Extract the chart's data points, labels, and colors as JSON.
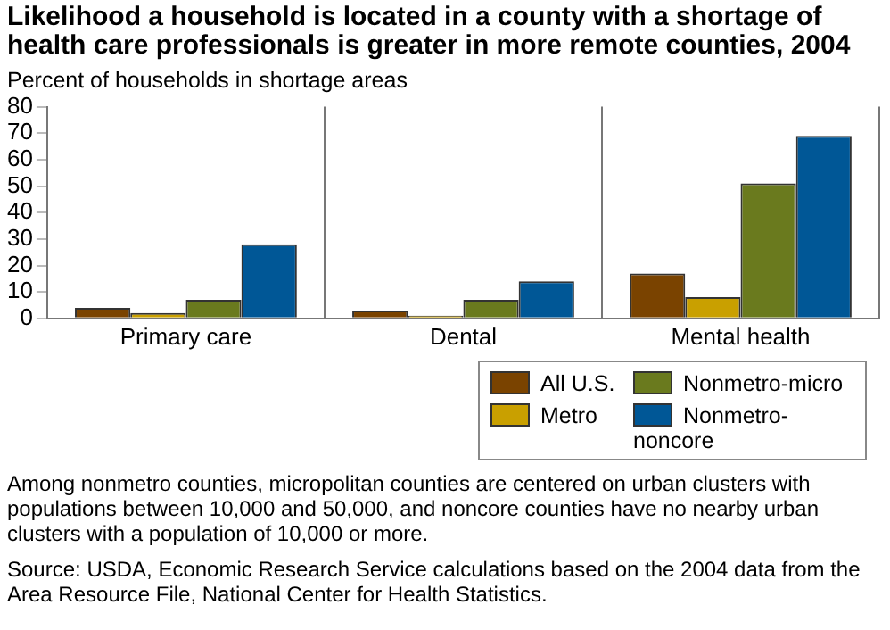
{
  "chart_data": {
    "type": "bar",
    "title": "Likelihood a household is located in a county with a shortage of health care professionals is greater in more remote counties, 2004",
    "ylabel": "Percent of households in shortage areas",
    "categories": [
      "Primary care",
      "Dental",
      "Mental health"
    ],
    "series": [
      {
        "name": "All U.S.",
        "color": "#7a4300",
        "values": [
          4,
          3,
          17
        ]
      },
      {
        "name": "Metro",
        "color": "#c9a000",
        "values": [
          2,
          1,
          8
        ]
      },
      {
        "name": "Nonmetro-micro",
        "color": "#6a7a1e",
        "values": [
          7,
          7,
          51
        ]
      },
      {
        "name": "Nonmetro-noncore",
        "color": "#005796",
        "values": [
          28,
          14,
          69
        ]
      }
    ],
    "ylim": [
      0,
      80
    ],
    "yticks": [
      0,
      10,
      20,
      30,
      40,
      50,
      60,
      70,
      80
    ],
    "grid": "x",
    "legend": "bottom",
    "annotations": [
      "Among nonmetro counties, micropolitan counties are centered on urban clusters with populations between 10,000 and 50,000, and noncore counties have no nearby urban clusters with a population of 10,000 or more.",
      "Source: USDA, Economic Research Service calculations based on the 2004 data from the Area Resource File, National Center for Health Statistics."
    ]
  }
}
